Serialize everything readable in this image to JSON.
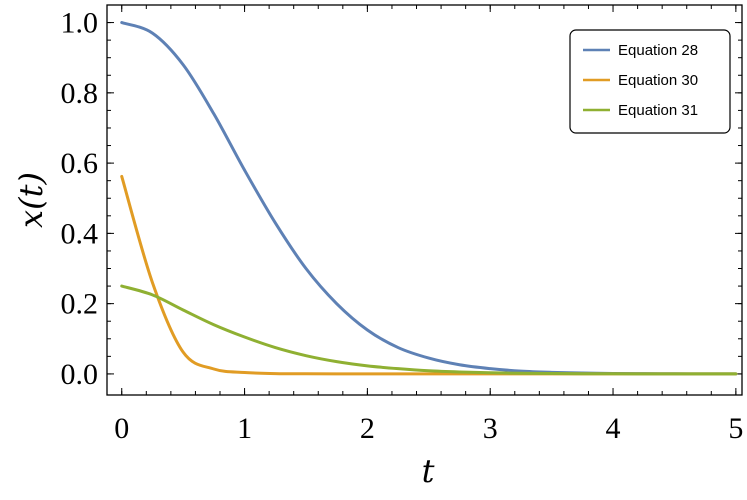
{
  "chart_data": {
    "type": "line",
    "title": "",
    "xlabel": "t",
    "ylabel": "x(t)",
    "xlim": [
      -0.12,
      5.05
    ],
    "ylim": [
      -0.06,
      1.05
    ],
    "xticks": [
      0,
      1,
      2,
      3,
      4,
      5
    ],
    "xtick_labels": [
      "0",
      "1",
      "2",
      "3",
      "4",
      "5"
    ],
    "yticks": [
      0.0,
      0.2,
      0.4,
      0.6,
      0.8,
      1.0
    ],
    "ytick_labels": [
      "0.0",
      "0.2",
      "0.4",
      "0.6",
      "0.8",
      "1.0"
    ],
    "grid": false,
    "legend": "top-right",
    "x": [
      0,
      0.25,
      0.5,
      0.75,
      1,
      1.25,
      1.5,
      1.75,
      2,
      2.25,
      2.5,
      2.75,
      3,
      3.25,
      3.5,
      3.75,
      4,
      4.25,
      4.5,
      4.75,
      5
    ],
    "series": [
      {
        "name": "Equation 28",
        "color": "#5e81b5",
        "values": [
          1.0,
          0.97,
          0.88,
          0.74,
          0.58,
          0.43,
          0.3,
          0.2,
          0.125,
          0.075,
          0.045,
          0.026,
          0.015,
          0.008,
          0.0045,
          0.0025,
          0.0013,
          0.0007,
          0.0004,
          0.0002,
          0.0001
        ]
      },
      {
        "name": "Equation 30",
        "color": "#e19c24",
        "values": [
          0.562,
          0.26,
          0.062,
          0.014,
          0.004,
          0.001,
          0.0003,
          0.0001,
          0,
          0,
          0,
          0,
          0,
          0,
          0,
          0,
          0,
          0,
          0,
          0,
          0
        ]
      },
      {
        "name": "Equation 31",
        "color": "#8fb032",
        "values": [
          0.25,
          0.225,
          0.182,
          0.14,
          0.105,
          0.075,
          0.052,
          0.035,
          0.023,
          0.015,
          0.009,
          0.0055,
          0.0033,
          0.0019,
          0.0011,
          0.0006,
          0.0003,
          0.0002,
          0.0001,
          0,
          0
        ]
      }
    ]
  }
}
